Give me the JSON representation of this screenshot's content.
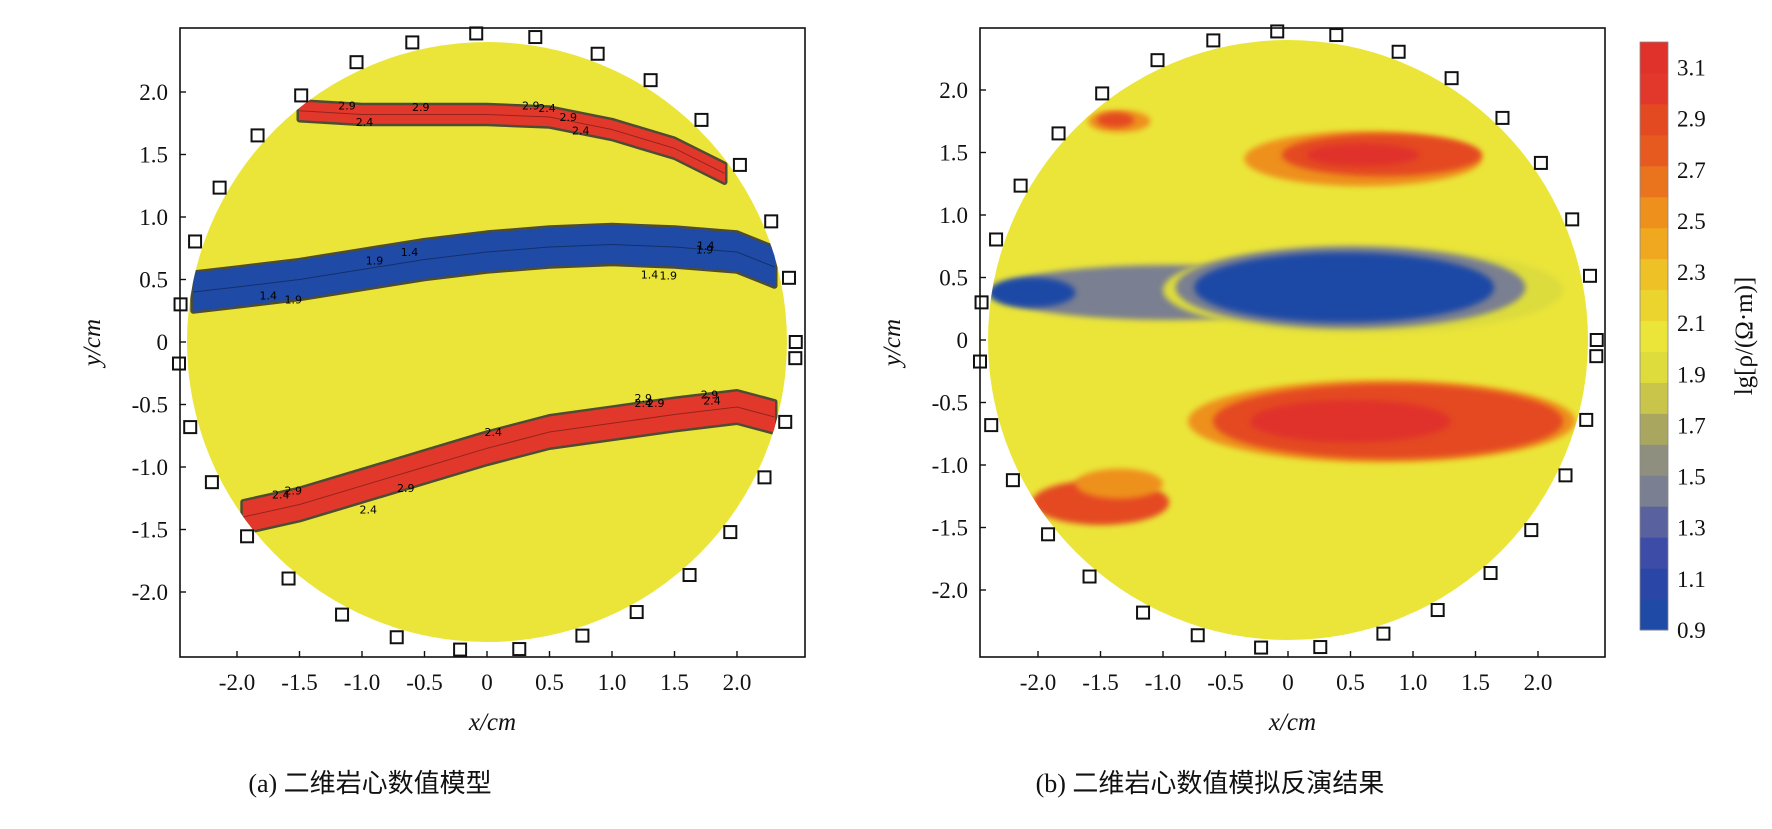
{
  "chart_data": [
    {
      "type": "heatmap",
      "caption": "(a) 二维岩心数值模型",
      "xlabel": "x/cm",
      "ylabel": "y/cm",
      "xlim": [
        -2.45,
        2.45
      ],
      "ylim": [
        -2.45,
        2.45
      ],
      "xticks": [
        "-2.0",
        "-1.5",
        "-1.0",
        "-0.5",
        "0",
        "0.5",
        "1.0",
        "1.5",
        "2.0"
      ],
      "yticks": [
        "2.0",
        "1.5",
        "1.0",
        "0.5",
        "0",
        "-0.5",
        "-1.0",
        "-1.5",
        "-2.0"
      ],
      "core_radius": 2.4,
      "background_value": 2.1,
      "bands": [
        {
          "x": [
            -1.5,
            -1.0,
            -0.5,
            0,
            0.5,
            1.0,
            1.5,
            1.9
          ],
          "y": [
            1.85,
            1.82,
            1.82,
            1.82,
            1.8,
            1.7,
            1.55,
            1.35
          ],
          "half_width": 0.07,
          "value": 3.0
        },
        {
          "x": [
            -2.35,
            -2.0,
            -1.5,
            -1.0,
            -0.5,
            0,
            0.5,
            1.0,
            1.5,
            2.0,
            2.3
          ],
          "y": [
            0.4,
            0.44,
            0.5,
            0.58,
            0.66,
            0.72,
            0.76,
            0.78,
            0.76,
            0.72,
            0.6
          ],
          "half_width": 0.15,
          "value": 1.0
        },
        {
          "x": [
            -1.95,
            -1.5,
            -1.0,
            -0.5,
            0,
            0.5,
            1.0,
            1.5,
            2.0,
            2.3
          ],
          "y": [
            -1.4,
            -1.3,
            -1.15,
            -1.0,
            -0.85,
            -0.72,
            -0.65,
            -0.58,
            -0.52,
            -0.6
          ],
          "half_width": 0.12,
          "value": 3.0
        }
      ],
      "contour_labels": [
        "2.9",
        "2.4",
        "2.9",
        "2.9",
        "2.4",
        "2.9",
        "2.4",
        "1.4",
        "1.9",
        "1.9",
        "1.4",
        "1.4",
        "1.9",
        "1.4",
        "1.9",
        "2.4",
        "2.9",
        "2.9",
        "2.4",
        "2.4",
        "2.9",
        "2.4",
        "2.9",
        "2.9",
        "2.4"
      ],
      "electrode_angles_deg": [
        0,
        12,
        23,
        35,
        46,
        58,
        69,
        81,
        92,
        104,
        115,
        127,
        138,
        150,
        161,
        173,
        184,
        196,
        207,
        219,
        230,
        242,
        253,
        265,
        276,
        288,
        299,
        311,
        322,
        334,
        345,
        357
      ],
      "electrode_radius": 2.47
    },
    {
      "type": "heatmap",
      "caption": "(b) 二维岩心数值模拟反演结果",
      "xlabel": "x/cm",
      "ylabel": "y/cm",
      "xlim": [
        -2.45,
        2.45
      ],
      "ylim": [
        -2.45,
        2.45
      ],
      "xticks": [
        "-2.0",
        "-1.5",
        "-1.0",
        "-0.5",
        "0",
        "0.5",
        "1.0",
        "1.5",
        "2.0"
      ],
      "yticks": [
        "2.0",
        "1.5",
        "1.0",
        "0.5",
        "0",
        "-0.5",
        "-1.0",
        "-1.5",
        "-2.0"
      ],
      "core_radius": 2.4,
      "background_value": 2.1,
      "blobs": [
        {
          "cx": 0.6,
          "cy": 1.45,
          "rx": 0.95,
          "ry": 0.22,
          "value": 2.5
        },
        {
          "cx": 0.75,
          "cy": 1.48,
          "rx": 0.8,
          "ry": 0.17,
          "value": 2.9
        },
        {
          "cx": 0.6,
          "cy": 1.48,
          "rx": 0.45,
          "ry": 0.09,
          "value": 3.1
        },
        {
          "cx": -1.35,
          "cy": 1.75,
          "rx": 0.25,
          "ry": 0.09,
          "value": 2.5
        },
        {
          "cx": -1.38,
          "cy": 1.76,
          "rx": 0.15,
          "ry": 0.06,
          "value": 2.9
        },
        {
          "cx": -0.95,
          "cy": 0.38,
          "rx": 1.4,
          "ry": 0.22,
          "value": 1.5
        },
        {
          "cx": 0.6,
          "cy": 0.4,
          "rx": 1.6,
          "ry": 0.35,
          "value": 1.9
        },
        {
          "cx": 0.5,
          "cy": 0.42,
          "rx": 1.4,
          "ry": 0.33,
          "value": 1.5
        },
        {
          "cx": 0.45,
          "cy": 0.42,
          "rx": 1.2,
          "ry": 0.28,
          "value": 1.0
        },
        {
          "cx": -2.05,
          "cy": 0.38,
          "rx": 0.35,
          "ry": 0.12,
          "value": 1.0
        },
        {
          "cx": 0.75,
          "cy": -0.65,
          "rx": 1.55,
          "ry": 0.33,
          "value": 2.5
        },
        {
          "cx": 0.8,
          "cy": -0.65,
          "rx": 1.4,
          "ry": 0.3,
          "value": 2.9
        },
        {
          "cx": 0.5,
          "cy": -0.65,
          "rx": 0.8,
          "ry": 0.17,
          "value": 3.1
        },
        {
          "cx": -1.5,
          "cy": -1.3,
          "rx": 0.55,
          "ry": 0.18,
          "value": 2.9
        },
        {
          "cx": -1.35,
          "cy": -1.15,
          "rx": 0.35,
          "ry": 0.12,
          "value": 2.5
        }
      ],
      "electrode_angles_deg": [
        0,
        12,
        23,
        35,
        46,
        58,
        69,
        81,
        92,
        104,
        115,
        127,
        138,
        150,
        161,
        173,
        184,
        196,
        207,
        219,
        230,
        242,
        253,
        265,
        276,
        288,
        299,
        311,
        322,
        334,
        345,
        357
      ],
      "electrode_radius": 2.47
    }
  ],
  "colorbar": {
    "label": "lg[ρ/(Ω·m)]",
    "min": 0.9,
    "max": 3.2,
    "tick_labels": [
      "3.1",
      "2.9",
      "2.7",
      "2.5",
      "2.3",
      "2.1",
      "1.9",
      "1.7",
      "1.5",
      "1.3",
      "1.1",
      "0.9"
    ],
    "colors": [
      "#1f4aa6",
      "#2a47a8",
      "#3d4ca6",
      "#59629f",
      "#7a7f91",
      "#8f8f80",
      "#a9a660",
      "#c8c54a",
      "#dddc3c",
      "#ebe53a",
      "#ecd42f",
      "#eec226",
      "#efa81f",
      "#ee901c",
      "#ea741d",
      "#e75a1f",
      "#e44a21",
      "#e2382b",
      "#e0312a"
    ]
  },
  "colors": {
    "background": "#ebe63a",
    "axis": "#111111"
  }
}
